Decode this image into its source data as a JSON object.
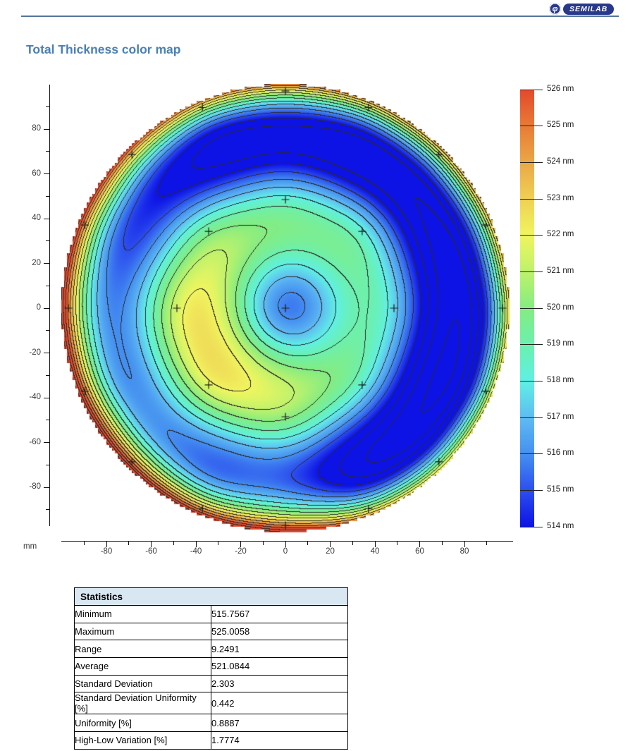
{
  "header": {
    "logo_text": "SEMILAB",
    "logo_phi": "φ",
    "brand_color": "#28388c"
  },
  "chart_data": {
    "type": "heatmap",
    "title": "Total Thickness color map",
    "units": "nm",
    "axis_unit": "mm",
    "wafer_radius_mm": 100,
    "contour_interval_nm": 1,
    "x_axis": {
      "major_ticks": [
        -80,
        -60,
        -40,
        -20,
        0,
        20,
        40,
        60,
        80
      ],
      "minor_ticks": [
        -90,
        -70,
        -50,
        -30,
        -10,
        10,
        30,
        50,
        70,
        90
      ],
      "range_mm": [
        -100,
        101
      ]
    },
    "y_axis": {
      "major_ticks": [
        80,
        60,
        40,
        20,
        0,
        -20,
        -40,
        -60,
        -80
      ],
      "minor_ticks": [
        90,
        70,
        50,
        30,
        10,
        -10,
        -30,
        -50,
        -70,
        -90
      ],
      "range_mm": [
        -100,
        100
      ]
    },
    "colorbar": {
      "min_nm": 514,
      "max_nm": 526,
      "tick_labels": [
        "526 nm",
        "525 nm",
        "524 nm",
        "523 nm",
        "522 nm",
        "521 nm",
        "520 nm",
        "519 nm",
        "518 nm",
        "517 nm",
        "516 nm",
        "515 nm",
        "514 nm"
      ],
      "color_stops": [
        {
          "v": 514,
          "c": "#0d12e5"
        },
        {
          "v": 515,
          "c": "#2c4fee"
        },
        {
          "v": 516,
          "c": "#4590f0"
        },
        {
          "v": 517,
          "c": "#5fbcf2"
        },
        {
          "v": 518,
          "c": "#5ff0e5"
        },
        {
          "v": 519,
          "c": "#6cf0ae"
        },
        {
          "v": 520,
          "c": "#84ec82"
        },
        {
          "v": 521,
          "c": "#bdf26c"
        },
        {
          "v": 522,
          "c": "#f0f55f"
        },
        {
          "v": 523,
          "c": "#efd054"
        },
        {
          "v": 524,
          "c": "#eba747"
        },
        {
          "v": 525,
          "c": "#e87b36"
        },
        {
          "v": 526,
          "c": "#e4492c"
        }
      ]
    },
    "points": [
      {
        "x": 0,
        "y": 0,
        "v": 515.76
      },
      {
        "x": 48.5,
        "y": 0,
        "v": 517.4
      },
      {
        "x": 34.3,
        "y": 34.3,
        "v": 518.2
      },
      {
        "x": 0,
        "y": 48.5,
        "v": 518.4
      },
      {
        "x": -34.3,
        "y": 34.3,
        "v": 519.7
      },
      {
        "x": -48.5,
        "y": 0,
        "v": 521.5
      },
      {
        "x": -34.3,
        "y": -34.3,
        "v": 521.7
      },
      {
        "x": 0,
        "y": -48.5,
        "v": 520.2
      },
      {
        "x": 34.3,
        "y": -34.3,
        "v": 518.1
      },
      {
        "x": 97,
        "y": 0,
        "v": 520.0
      },
      {
        "x": 89.6,
        "y": 37.1,
        "v": 520.6
      },
      {
        "x": 68.6,
        "y": 68.6,
        "v": 520.9
      },
      {
        "x": 37.1,
        "y": 89.6,
        "v": 521.0
      },
      {
        "x": 0,
        "y": 97,
        "v": 521.6
      },
      {
        "x": -37.1,
        "y": 89.6,
        "v": 521.3
      },
      {
        "x": -68.6,
        "y": 68.6,
        "v": 522.9
      },
      {
        "x": -89.6,
        "y": 37.1,
        "v": 524.0
      },
      {
        "x": -97,
        "y": 0,
        "v": 524.8
      },
      {
        "x": -89.6,
        "y": -37.1,
        "v": 524.9
      },
      {
        "x": -68.6,
        "y": -68.6,
        "v": 525.01
      },
      {
        "x": -37.1,
        "y": -89.6,
        "v": 524.3
      },
      {
        "x": 0,
        "y": -97,
        "v": 525.0
      },
      {
        "x": 37.1,
        "y": -89.6,
        "v": 521.2
      },
      {
        "x": 68.6,
        "y": -68.6,
        "v": 519.7
      },
      {
        "x": 89.6,
        "y": -37.1,
        "v": 519.5
      }
    ]
  },
  "statistics": {
    "header": "Statistics",
    "rows": [
      {
        "label": "Minimum",
        "value": "515.7567"
      },
      {
        "label": "Maximum",
        "value": "525.0058"
      },
      {
        "label": "Range",
        "value": "9.2491"
      },
      {
        "label": "Average",
        "value": "521.0844"
      },
      {
        "label": "Standard Deviation",
        "value": "2.303"
      },
      {
        "label": "Standard Deviation Uniformity [%]",
        "value": "0.442"
      },
      {
        "label": "Uniformity [%]",
        "value": "0.8887"
      },
      {
        "label": "High-Low Variation [%]",
        "value": "1.7774"
      }
    ]
  }
}
